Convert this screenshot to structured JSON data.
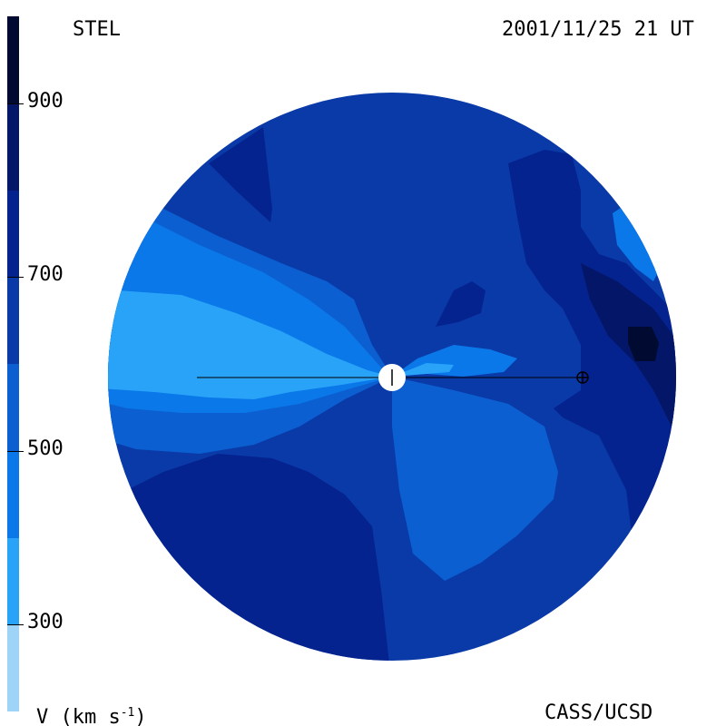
{
  "header": {
    "left_label": "STEL",
    "right_label": "2001/11/25 21 UT"
  },
  "footer": {
    "quantity_label": "V (km s",
    "quantity_exponent": "-1",
    "quantity_close": ")",
    "credit": "CASS/UCSD"
  },
  "colorbar": {
    "ticks": [
      {
        "label": "900",
        "value": 900
      },
      {
        "label": "700",
        "value": 700
      },
      {
        "label": "500",
        "value": 500
      },
      {
        "label": "300",
        "value": 300
      }
    ],
    "range": [
      200,
      1000
    ],
    "bands": [
      {
        "min": 200,
        "max": 300,
        "color": "#9ed4f8"
      },
      {
        "min": 300,
        "max": 400,
        "color": "#28a3f8"
      },
      {
        "min": 400,
        "max": 500,
        "color": "#0a78e8"
      },
      {
        "min": 500,
        "max": 600,
        "color": "#0b5fd1"
      },
      {
        "min": 600,
        "max": 700,
        "color": "#0a3aa8"
      },
      {
        "min": 700,
        "max": 800,
        "color": "#05238f"
      },
      {
        "min": 800,
        "max": 900,
        "color": "#041668"
      },
      {
        "min": 900,
        "max": 1000,
        "color": "#010a30"
      }
    ]
  },
  "colors": {
    "background": "#ffffff",
    "sun": "#ffffff",
    "axis": "#000000"
  }
}
